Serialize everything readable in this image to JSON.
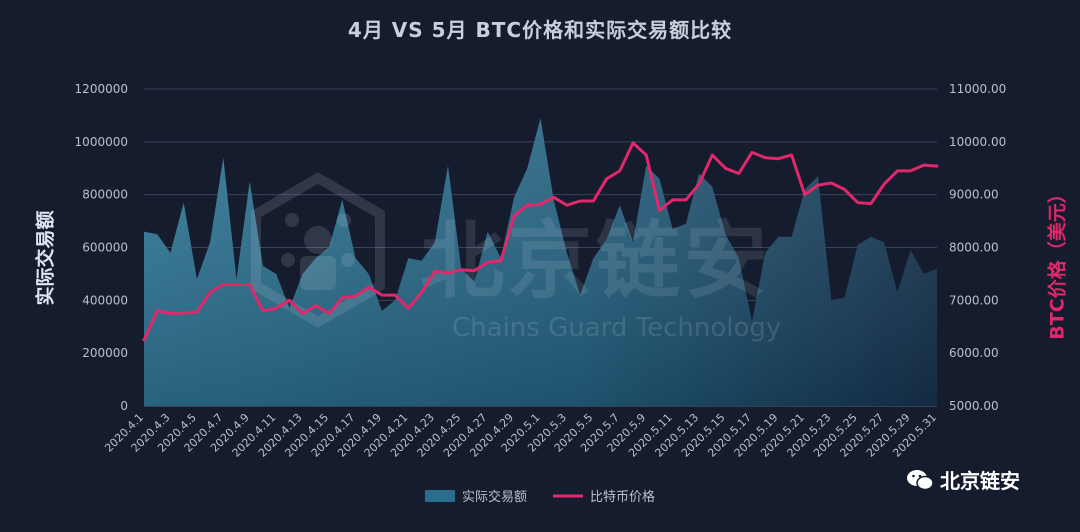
{
  "chart_data": {
    "type": "area+line",
    "title": "4月 VS 5月 BTC价格和实际交易额比较",
    "y_left_label": "实际交易额",
    "y_right_label": "BTC价格（美元）",
    "y_left_ticks": [
      "0",
      "200000",
      "400000",
      "600000",
      "800000",
      "1000000",
      "1200000"
    ],
    "y_left_range": [
      0,
      1200000
    ],
    "y_right_ticks": [
      "5000.00",
      "6000.00",
      "7000.00",
      "8000.00",
      "9000.00",
      "10000.00",
      "11000.00"
    ],
    "y_right_range": [
      5000,
      11000
    ],
    "x_tick_labels": [
      "2020.4.1",
      "2020.4.3",
      "2020.4.5",
      "2020.4.7",
      "2020.4.9",
      "2020.4.11",
      "2020.4.13",
      "2020.4.15",
      "2020.4.17",
      "2020.4.19",
      "2020.4.21",
      "2020.4.23",
      "2020.4.25",
      "2020.4.27",
      "2020.4.29",
      "2020.5.1",
      "2020.5.3",
      "2020.5.5",
      "2020.5.7",
      "2020.5.9",
      "2020.5.11",
      "2020.5.13",
      "2020.5.15",
      "2020.5.17",
      "2020.5.19",
      "2020.5.21",
      "2020.5.23",
      "2020.5.25",
      "2020.5.27",
      "2020.5.29",
      "2020.5.31"
    ],
    "x": [
      "2020.4.1",
      "2020.4.2",
      "2020.4.3",
      "2020.4.4",
      "2020.4.5",
      "2020.4.6",
      "2020.4.7",
      "2020.4.8",
      "2020.4.9",
      "2020.4.10",
      "2020.4.11",
      "2020.4.12",
      "2020.4.13",
      "2020.4.14",
      "2020.4.15",
      "2020.4.16",
      "2020.4.17",
      "2020.4.18",
      "2020.4.19",
      "2020.4.20",
      "2020.4.21",
      "2020.4.22",
      "2020.4.23",
      "2020.4.24",
      "2020.4.25",
      "2020.4.26",
      "2020.4.27",
      "2020.4.28",
      "2020.4.29",
      "2020.4.30",
      "2020.5.1",
      "2020.5.2",
      "2020.5.3",
      "2020.5.4",
      "2020.5.5",
      "2020.5.6",
      "2020.5.7",
      "2020.5.8",
      "2020.5.9",
      "2020.5.10",
      "2020.5.11",
      "2020.5.12",
      "2020.5.13",
      "2020.5.14",
      "2020.5.15",
      "2020.5.16",
      "2020.5.17",
      "2020.5.18",
      "2020.5.19",
      "2020.5.20",
      "2020.5.21",
      "2020.5.22",
      "2020.5.23",
      "2020.5.24",
      "2020.5.25",
      "2020.5.26",
      "2020.5.27",
      "2020.5.28",
      "2020.5.29",
      "2020.5.30",
      "2020.5.31"
    ],
    "series": [
      {
        "name": "实际交易额",
        "kind": "area",
        "axis": "left",
        "values": [
          660000,
          650000,
          580000,
          770000,
          480000,
          620000,
          940000,
          480000,
          850000,
          530000,
          500000,
          370000,
          500000,
          560000,
          600000,
          780000,
          560000,
          500000,
          360000,
          400000,
          560000,
          550000,
          620000,
          910000,
          520000,
          470000,
          660000,
          560000,
          790000,
          900000,
          1090000,
          780000,
          580000,
          420000,
          560000,
          630000,
          760000,
          620000,
          910000,
          860000,
          670000,
          690000,
          880000,
          830000,
          650000,
          560000,
          320000,
          580000,
          640000,
          640000,
          820000,
          870000,
          400000,
          410000,
          610000,
          640000,
          620000,
          430000,
          590000,
          500000,
          520000
        ]
      },
      {
        "name": "比特币价格",
        "kind": "line",
        "axis": "right",
        "values": [
          6250,
          6800,
          6750,
          6760,
          6780,
          7150,
          7300,
          7300,
          7300,
          6800,
          6850,
          7000,
          6750,
          6900,
          6750,
          7050,
          7080,
          7250,
          7100,
          7100,
          6850,
          7150,
          7550,
          7520,
          7580,
          7560,
          7720,
          7750,
          8600,
          8800,
          8820,
          8950,
          8800,
          8880,
          8880,
          9300,
          9450,
          9980,
          9750,
          8700,
          8900,
          8900,
          9200,
          9750,
          9500,
          9400,
          9800,
          9700,
          9680,
          9750,
          9000,
          9180,
          9220,
          9100,
          8850,
          8830,
          9200,
          9450,
          9450,
          9560,
          9540
        ]
      }
    ],
    "legend": [
      "实际交易额",
      "比特币价格"
    ],
    "legend_position": "bottom",
    "grid": true,
    "colors": {
      "area": "#2a6d8f",
      "line": "#e0286a",
      "background": "#141c2e"
    }
  },
  "watermark": {
    "cn": "北京链安",
    "en": "Chains Guard Technology"
  },
  "brand": {
    "name": "北京链安"
  }
}
